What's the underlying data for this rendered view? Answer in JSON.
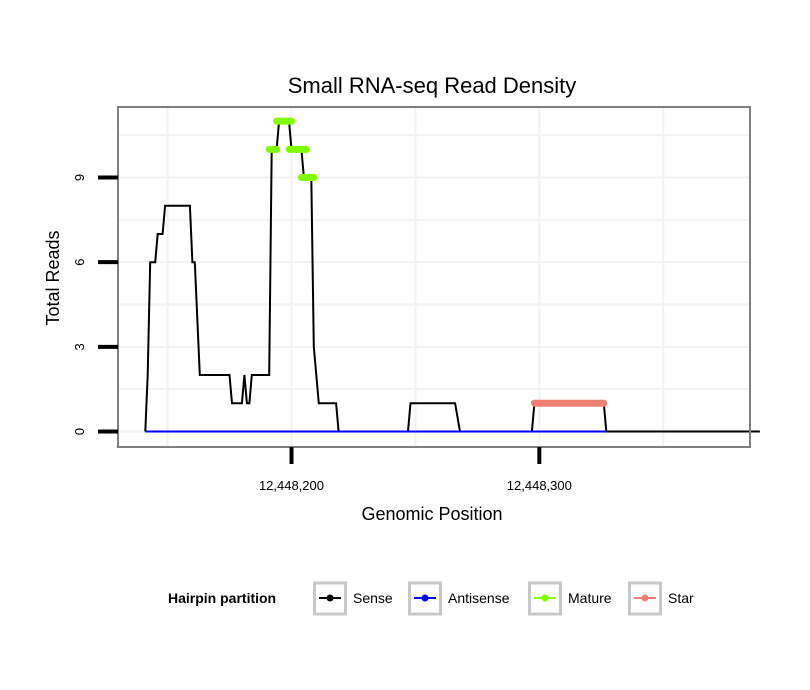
{
  "chart_data": {
    "type": "line",
    "title": "Small RNA-seq Read Density",
    "xlabel": "Genomic Position",
    "ylabel": "Total Reads",
    "xlim": [
      12448130,
      12448385
    ],
    "ylim": [
      -0.55,
      11.5
    ],
    "x_ticks": [
      12448200,
      12448300
    ],
    "x_tick_labels": [
      "12,448,200",
      "12,448,300"
    ],
    "y_ticks": [
      0,
      3,
      6,
      9
    ],
    "y_tick_labels": [
      "0",
      "3",
      "6",
      "9"
    ],
    "grid": true,
    "legend_position": "bottom",
    "legend_title": "Hairpin partition",
    "series": [
      {
        "name": "Sense",
        "color": "#000000",
        "kind": "line",
        "points": [
          [
            12448141,
            0
          ],
          [
            12448142,
            2
          ],
          [
            12448143,
            6
          ],
          [
            12448145,
            6
          ],
          [
            12448146,
            7
          ],
          [
            12448148,
            7
          ],
          [
            12448149,
            8
          ],
          [
            12448159,
            8
          ],
          [
            12448160,
            6
          ],
          [
            12448161,
            6
          ],
          [
            12448163,
            2
          ],
          [
            12448175,
            2
          ],
          [
            12448176,
            1
          ],
          [
            12448180,
            1
          ],
          [
            12448181,
            2
          ],
          [
            12448182,
            1
          ],
          [
            12448183,
            1
          ],
          [
            12448184,
            2
          ],
          [
            12448191,
            2
          ],
          [
            12448192,
            10
          ],
          [
            12448194,
            10
          ],
          [
            12448195,
            11
          ],
          [
            12448199,
            11
          ],
          [
            12448200,
            10
          ],
          [
            12448204,
            10
          ],
          [
            12448205,
            9
          ],
          [
            12448208,
            9
          ],
          [
            12448209,
            3
          ],
          [
            12448211,
            1
          ],
          [
            12448218,
            1
          ],
          [
            12448219,
            0
          ],
          [
            12448247,
            0
          ],
          [
            12448248,
            1
          ],
          [
            12448266,
            1
          ],
          [
            12448268,
            0
          ],
          [
            12448297,
            0
          ],
          [
            12448298,
            1
          ],
          [
            12448326,
            1
          ],
          [
            12448327,
            0
          ],
          [
            12448389,
            0
          ]
        ]
      },
      {
        "name": "Antisense",
        "color": "#0000ff",
        "kind": "line",
        "points": [
          [
            12448141,
            0
          ],
          [
            12448327,
            0
          ]
        ]
      },
      {
        "name": "Mature",
        "color": "#7fff00",
        "kind": "segments",
        "segments": [
          {
            "x0": 12448191,
            "x1": 12448194,
            "y": 10
          },
          {
            "x0": 12448194,
            "x1": 12448200,
            "y": 11
          },
          {
            "x0": 12448199,
            "x1": 12448206,
            "y": 10
          },
          {
            "x0": 12448204,
            "x1": 12448209,
            "y": 9
          }
        ]
      },
      {
        "name": "Star",
        "color": "#f08075",
        "kind": "segments",
        "segments": [
          {
            "x0": 12448298,
            "x1": 12448326,
            "y": 1
          }
        ]
      }
    ]
  }
}
